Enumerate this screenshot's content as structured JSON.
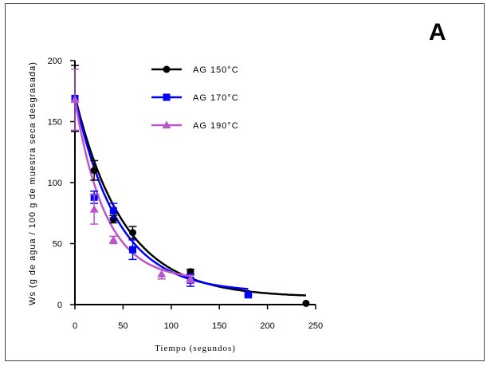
{
  "chart_data": {
    "type": "scatter",
    "panel_label": "A",
    "xlabel": "Tiempo (segundos)",
    "ylabel": "Ws (g de agua / 100 g de muestra seca desgrasada)",
    "xlim": [
      0,
      250
    ],
    "ylim": [
      0,
      200
    ],
    "xticks": [
      0,
      50,
      100,
      150,
      200,
      250
    ],
    "yticks": [
      0,
      50,
      100,
      150,
      200
    ],
    "legend_position": "top",
    "series": [
      {
        "name": "AG 150°C",
        "color": "#000000",
        "marker": "circle",
        "x": [
          0,
          20,
          40,
          60,
          120,
          180,
          240
        ],
        "y": [
          169,
          110,
          70,
          59,
          27,
          9,
          1
        ],
        "err": [
          27,
          8,
          3,
          5,
          2,
          1,
          0
        ],
        "fit": {
          "a": 165,
          "k": 0.0196,
          "c": 6
        }
      },
      {
        "name": "AG 170°C",
        "color": "#0000ff",
        "marker": "square",
        "x": [
          0,
          20,
          40,
          60,
          120,
          180
        ],
        "y": [
          169,
          88,
          77,
          45,
          20,
          8
        ],
        "err": [
          0,
          5,
          6,
          8,
          5,
          2
        ],
        "fit": {
          "a": 160,
          "k": 0.0225,
          "c": 10
        }
      },
      {
        "name": "AG 190°C",
        "color": "#bb55cc",
        "marker": "triangle",
        "x": [
          0,
          20,
          40,
          90,
          120
        ],
        "y": [
          168,
          78,
          53,
          25,
          21
        ],
        "err": [
          25,
          12,
          3,
          4,
          3
        ],
        "fit": {
          "a": 148,
          "k": 0.0315,
          "c": 20
        }
      }
    ]
  }
}
